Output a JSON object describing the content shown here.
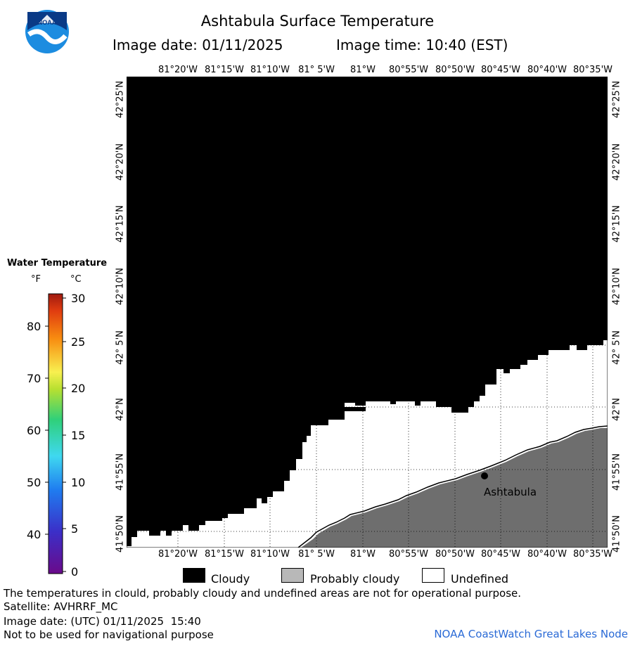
{
  "header": {
    "title": "Ashtabula Surface Temperature",
    "image_date": "Image date: 01/11/2025",
    "image_time": "Image time: 10:40 (EST)",
    "logo_text": "NOAA"
  },
  "map": {
    "lon_labels": [
      "81°20'W",
      "81°15'W",
      "81°10'W",
      "81° 5'W",
      "81°W",
      "80°55'W",
      "80°50'W",
      "80°45'W",
      "80°40'W",
      "80°35'W"
    ],
    "lat_labels_left": [
      "42°25'N",
      "42°20'N",
      "42°15'N",
      "42°10'N",
      "42° 5'N",
      "42°N",
      "41°55'N",
      "41°50'N"
    ],
    "lat_labels_right": [
      "42°25'N",
      "42°20'N",
      "42°15'N",
      "42°10'N",
      "42° 5'N",
      "42°N",
      "41°55'N",
      "41°50'N"
    ],
    "city": {
      "name": "Ashtabula"
    },
    "colors": {
      "cloudy": "#000000",
      "land": "#6e6e6e",
      "undefined": "#ffffff"
    }
  },
  "legend": {
    "title": "Water Temperature",
    "unit_f": "°F",
    "unit_c": "°C",
    "f_ticks": [
      "80",
      "70",
      "60",
      "50",
      "40"
    ],
    "c_ticks": [
      "30",
      "25",
      "20",
      "15",
      "10",
      "5",
      "0"
    ]
  },
  "key": {
    "cloudy": "Cloudy",
    "probably_cloudy": "Probably cloudy",
    "undefined": "Undefined",
    "colors": {
      "cloudy": "#000000",
      "probably_cloudy": "#b8b8b8",
      "undefined": "#ffffff"
    }
  },
  "footer": {
    "disclaimer": "The temperatures in clould, probably cloudy and undefined areas are not for operational purpose.",
    "satellite": "Satellite: AVHRRF_MC",
    "utc_date": "Image date: (UTC) 01/11/2025  15:40",
    "nav_warning": "Not to be used for navigational purpose",
    "credit": "NOAA CoastWatch Great Lakes Node"
  }
}
